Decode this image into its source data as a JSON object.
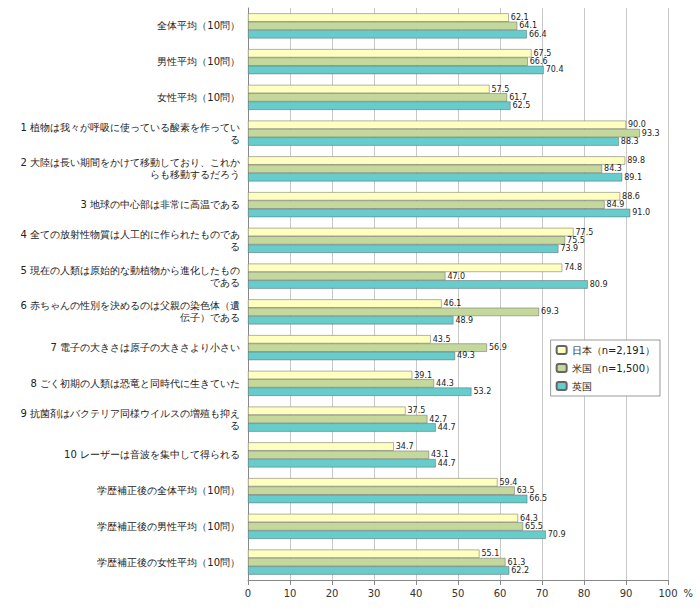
{
  "chart_data": {
    "type": "bar",
    "orientation": "horizontal",
    "x_label": "%",
    "categories": [
      "全体平均（10問）",
      "男性平均（10問）",
      "女性平均（10問）",
      "1 植物は我々が呼吸に使っている酸素を作っている",
      "2 大陸は長い期間をかけて移動しており、これからも移動するだろう",
      "3 地球の中心部は非常に高温である",
      "4 全ての放射性物質は人工的に作られたものである",
      "5 現在の人類は原始的な動植物から進化したものである",
      "6 赤ちゃんの性別を決めるのは父親の染色体（遺伝子）である",
      "7 電子の大きさは原子の大きさより小さい",
      "8 ごく初期の人類は恐竜と同時代に生きていた",
      "9 抗菌剤はバクテリア同様ウイルスの増殖も抑える",
      "10 レーザーは音波を集中して得られる",
      "学歴補正後の全体平均（10問）",
      "学歴補正後の男性平均（10問）",
      "学歴補正後の女性平均（10問）"
    ],
    "series": [
      {
        "name": "日本（n=2,191）",
        "color": "#ffffc0",
        "values": [
          62.1,
          67.5,
          57.5,
          90.0,
          89.8,
          88.6,
          77.5,
          74.8,
          46.1,
          43.5,
          39.1,
          37.5,
          34.7,
          59.4,
          64.3,
          55.1
        ],
        "value_labels": [
          "62.1",
          "67.5",
          "57.5",
          "90.0",
          "89.8",
          "88.6",
          "77.5",
          "74.8",
          "46.1",
          "43.5",
          "39.1",
          "37.5",
          "34.7",
          "59.4",
          "64.3",
          "55.1"
        ]
      },
      {
        "name": "米国（n=1,500）",
        "color": "#c4d89c",
        "values": [
          64.1,
          66.6,
          61.7,
          93.3,
          84.3,
          84.9,
          75.5,
          47.0,
          69.3,
          56.9,
          44.3,
          42.7,
          43.1,
          63.5,
          65.5,
          61.3
        ],
        "value_labels": [
          "64.1",
          "66.6",
          "61.7",
          "93.3",
          "84.3",
          "84.9",
          "75.5",
          "47.0",
          "69.3",
          "56.9",
          "44.3",
          "42.7",
          "43.1",
          "63.5",
          "65.5",
          "61.3"
        ]
      },
      {
        "name": "英国",
        "color": "#66cccc",
        "values": [
          66.4,
          70.4,
          62.5,
          88.3,
          89.1,
          91.0,
          73.9,
          80.9,
          48.9,
          49.3,
          53.2,
          44.7,
          44.7,
          66.5,
          70.9,
          62.2
        ],
        "value_labels": [
          "66.4",
          "70.4",
          "62.5",
          "88.3",
          "89.1",
          "91.0",
          "73.9",
          "80.9",
          "48.9",
          "49.3",
          "53.2",
          "44.7",
          "44.7",
          "66.5",
          "70.9",
          "62.2"
        ]
      }
    ],
    "xlim": [
      0,
      100
    ],
    "xticks": [
      0,
      10,
      20,
      30,
      40,
      50,
      60,
      70,
      80,
      90,
      100
    ],
    "grid": true,
    "legend": "right",
    "data_labels": true
  }
}
